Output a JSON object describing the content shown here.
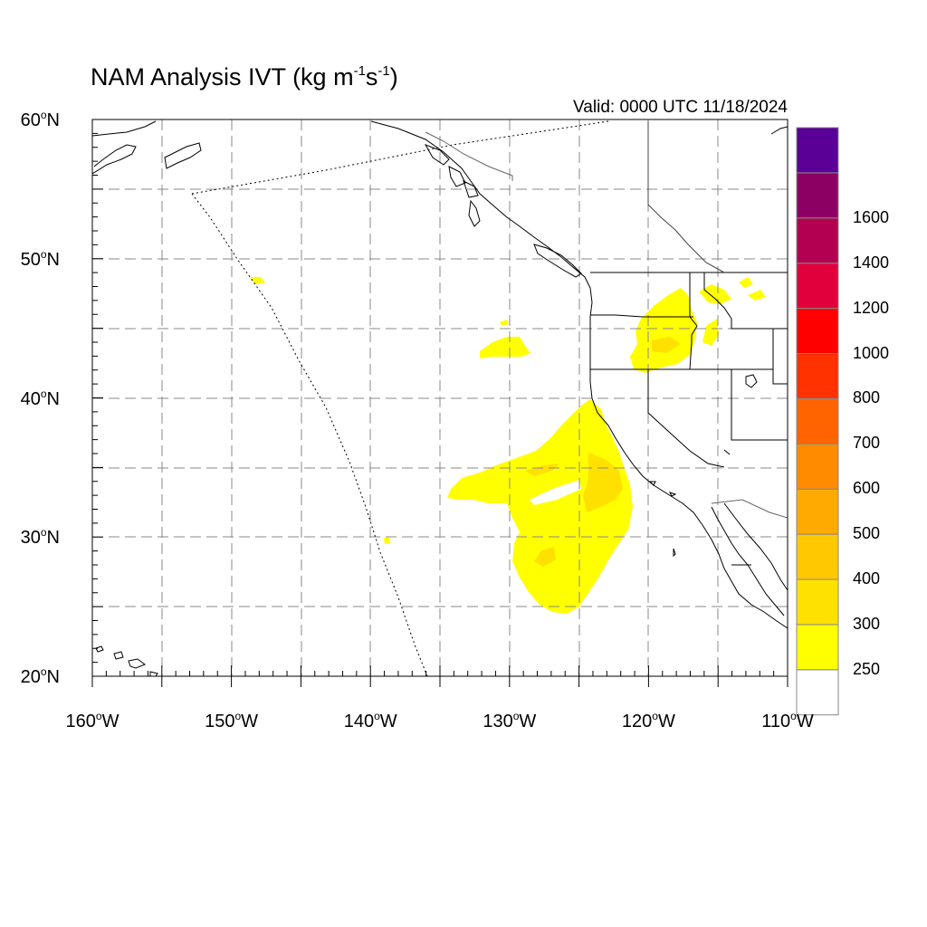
{
  "title": {
    "prefix": "NAM Analysis IVT (kg m",
    "sup1": "-1",
    "mid": "s",
    "sup2": "-1",
    "suffix": ")"
  },
  "valid_label": "Valid: 0000 UTC 11/18/2024",
  "map": {
    "lat_range": [
      20,
      60
    ],
    "lon_range": [
      -160,
      -110
    ],
    "grid": "dashed every 5 degrees",
    "lat_labels": [
      {
        "value": 60,
        "text": "60",
        "hemi": "N"
      },
      {
        "value": 50,
        "text": "50",
        "hemi": "N"
      },
      {
        "value": 40,
        "text": "40",
        "hemi": "N"
      },
      {
        "value": 30,
        "text": "30",
        "hemi": "N"
      },
      {
        "value": 20,
        "text": "20",
        "hemi": "N"
      }
    ],
    "lon_labels": [
      {
        "value": -160,
        "text": "160",
        "hemi": "W"
      },
      {
        "value": -150,
        "text": "150",
        "hemi": "W"
      },
      {
        "value": -140,
        "text": "140",
        "hemi": "W"
      },
      {
        "value": -130,
        "text": "130",
        "hemi": "W"
      },
      {
        "value": -120,
        "text": "120",
        "hemi": "W"
      },
      {
        "value": -110,
        "text": "110",
        "hemi": "W"
      }
    ]
  },
  "colorbar": {
    "colors": [
      "#ffffff",
      "#ffff00",
      "#ffe100",
      "#ffc800",
      "#ffaa00",
      "#ff8c00",
      "#ff6400",
      "#ff3200",
      "#ff0000",
      "#e1003c",
      "#b40050",
      "#8c0064",
      "#5a0096"
    ],
    "labels": [
      "250",
      "300",
      "400",
      "500",
      "600",
      "700",
      "800",
      "1000",
      "1200",
      "1400",
      "1600"
    ]
  }
}
